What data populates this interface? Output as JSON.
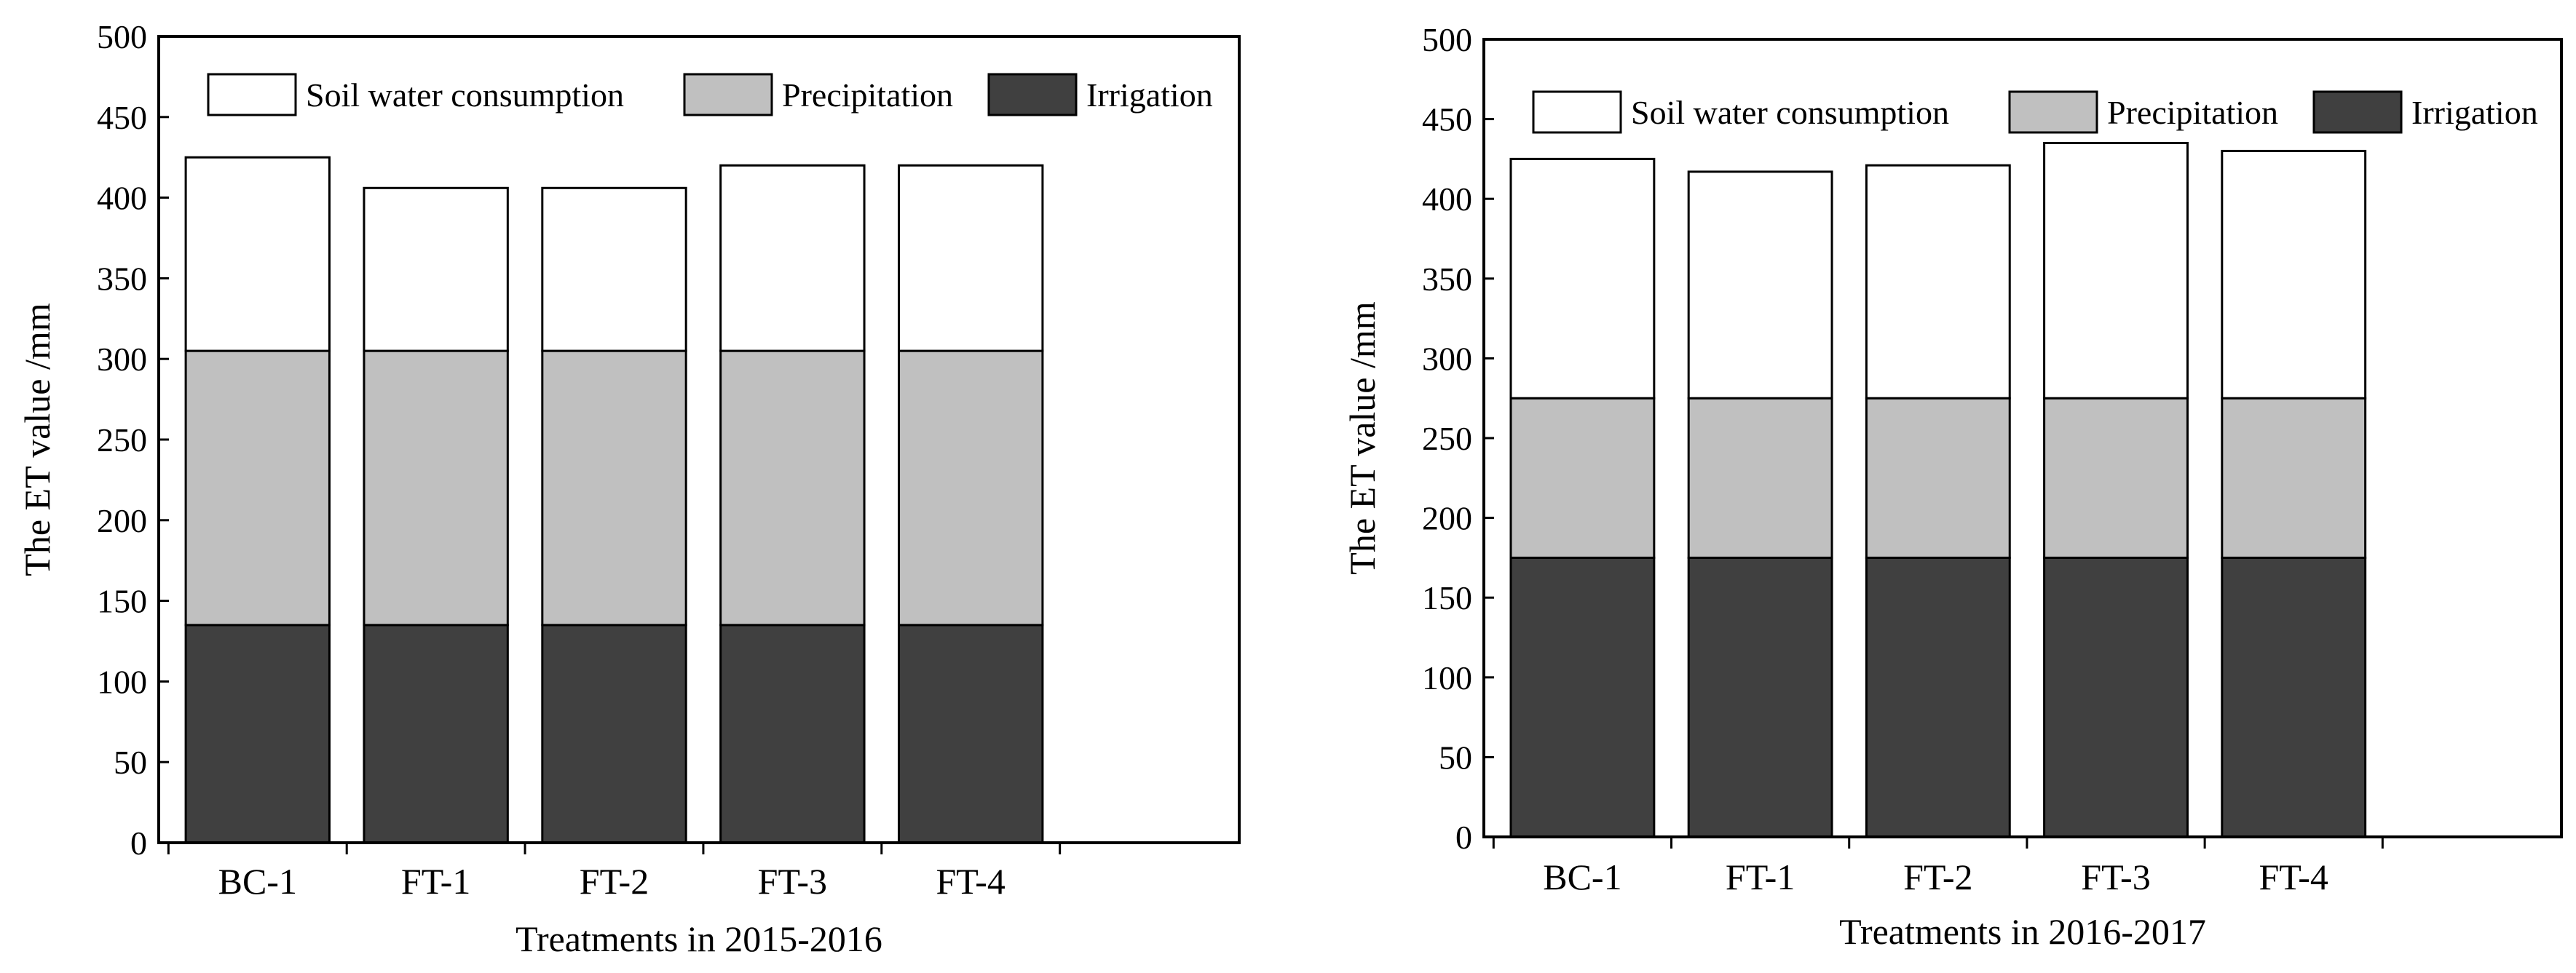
{
  "colors": {
    "soil": "#ffffff",
    "precip": "#c0c0c0",
    "irrig": "#404040",
    "stroke": "#000000"
  },
  "chart_data": [
    {
      "type": "bar",
      "stacked": true,
      "title": "",
      "xlabel": "Treatments in 2015-2016",
      "ylabel": "The ET value /mm",
      "ylim": [
        0,
        500
      ],
      "yticks": [
        0,
        50,
        100,
        150,
        200,
        250,
        300,
        350,
        400,
        450,
        500
      ],
      "categories": [
        "BC-1",
        "FT-1",
        "FT-2",
        "FT-3",
        "FT-4"
      ],
      "series": [
        {
          "name": "Irrigation",
          "key": "irrig",
          "values": [
            135,
            135,
            135,
            135,
            135
          ]
        },
        {
          "name": "Precipitation",
          "key": "precip",
          "values": [
            170,
            170,
            170,
            170,
            170
          ]
        },
        {
          "name": "Soil water consumption",
          "key": "soil",
          "values": [
            120,
            101,
            101,
            115,
            115
          ]
        }
      ],
      "legend": [
        "Soil water consumption",
        "Precipitation",
        "Irrigation"
      ],
      "legend_position": "top"
    },
    {
      "type": "bar",
      "stacked": true,
      "title": "",
      "xlabel": "Treatments in 2016-2017",
      "ylabel": "The ET value /mm",
      "ylim": [
        0,
        500
      ],
      "yticks": [
        0,
        50,
        100,
        150,
        200,
        250,
        300,
        350,
        400,
        450,
        500
      ],
      "categories": [
        "BC-1",
        "FT-1",
        "FT-2",
        "FT-3",
        "FT-4"
      ],
      "series": [
        {
          "name": "Irrigation",
          "key": "irrig",
          "values": [
            175,
            175,
            175,
            175,
            175
          ]
        },
        {
          "name": "Precipitation",
          "key": "precip",
          "values": [
            100,
            100,
            100,
            100,
            100
          ]
        },
        {
          "name": "Soil water consumption",
          "key": "soil",
          "values": [
            150,
            142,
            146,
            160,
            155
          ]
        }
      ],
      "legend": [
        "Soil water consumption",
        "Precipitation",
        "Irrigation"
      ],
      "legend_position": "top"
    }
  ]
}
